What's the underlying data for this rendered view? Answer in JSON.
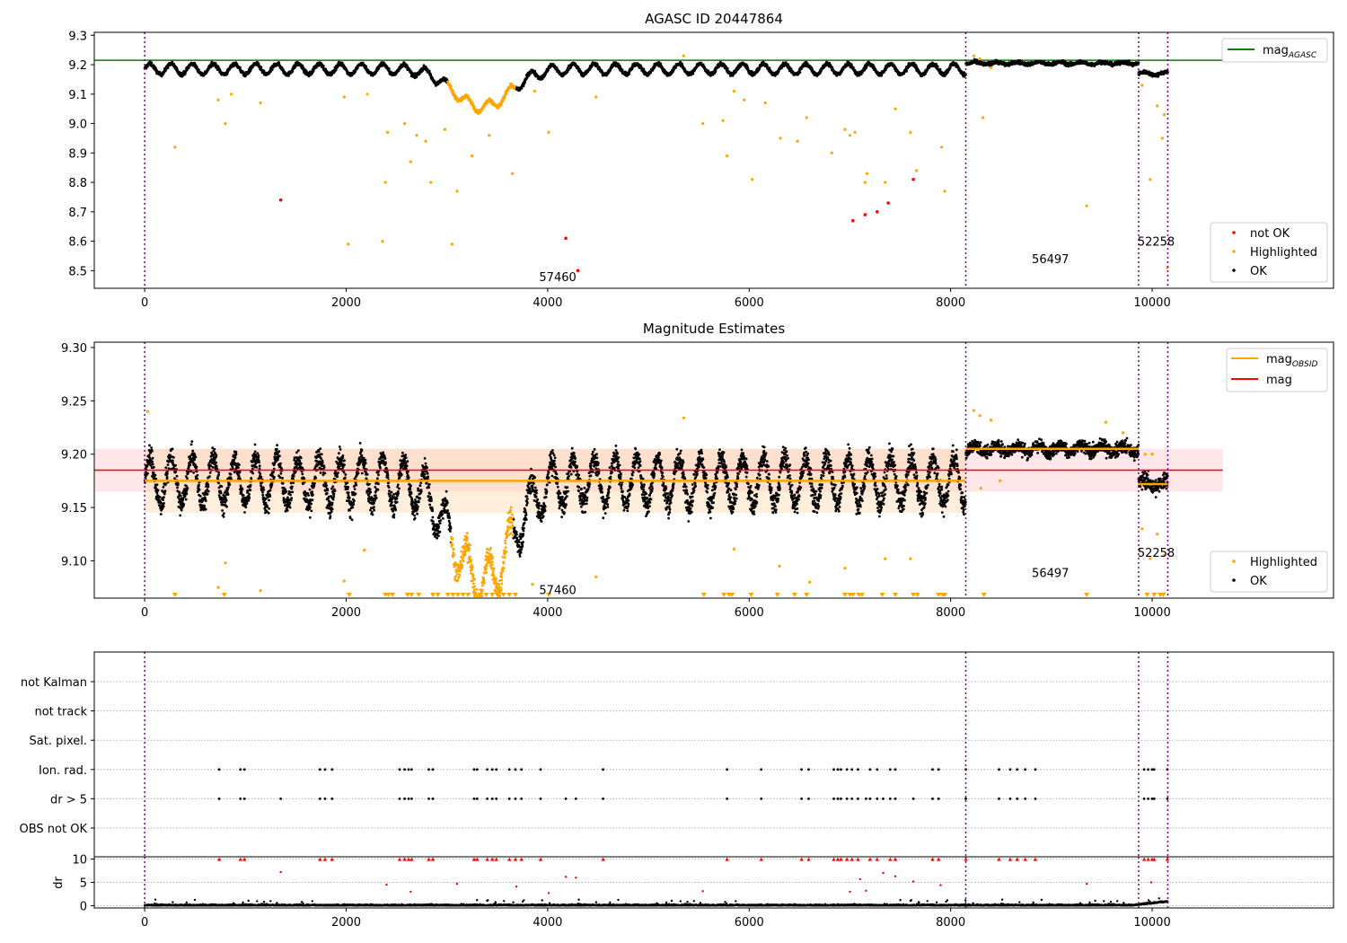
{
  "chart_data": [
    {
      "type": "scatter",
      "title": "AGASC ID 20447864",
      "xlim": [
        -500,
        11800
      ],
      "ylim": [
        8.44,
        9.31
      ],
      "xticks": [
        0,
        2000,
        4000,
        6000,
        8000,
        10000
      ],
      "yticks": [
        8.5,
        8.6,
        8.7,
        8.8,
        8.9,
        9.0,
        9.1,
        9.2,
        9.3
      ],
      "grid": false,
      "obsid_boundaries": [
        0,
        8150,
        9865,
        10155
      ],
      "obsid_labels": [
        {
          "text": "57460",
          "x": 4100,
          "y": 8.48
        },
        {
          "text": "56497",
          "x": 8990,
          "y": 8.54
        },
        {
          "text": "52258",
          "x": 10040,
          "y": 8.6
        }
      ],
      "reference_line": {
        "name": "magAGASC",
        "label_main": "mag",
        "label_sub": "AGASC",
        "y": 9.215,
        "x_end": 10700,
        "color": "#008000"
      },
      "legend_top": {
        "placement": "top-right",
        "entries": [
          {
            "label_main": "mag",
            "label_sub": "AGASC",
            "color": "#008000",
            "kind": "line"
          }
        ]
      },
      "legend_bottom": {
        "placement": "lower-right",
        "entries": [
          {
            "label": "not OK",
            "color": "#ff0000",
            "kind": "dot"
          },
          {
            "label": "Highlighted",
            "color": "#ffa500",
            "kind": "dot"
          },
          {
            "label": "OK",
            "color": "#000000",
            "kind": "dot"
          }
        ]
      },
      "segments": [
        {
          "x": [
            0,
            8150
          ],
          "level": 9.185,
          "wave_amp": 0.018,
          "dip": {
            "center": 3350,
            "width": 400,
            "depth": 0.13
          }
        },
        {
          "x": [
            8150,
            9865
          ],
          "level": 9.205,
          "wave_amp": 0.004
        },
        {
          "x": [
            9865,
            10155
          ],
          "level": 9.17,
          "wave_amp": 0.005
        }
      ],
      "highlighted_outliers": [
        [
          300,
          8.92
        ],
        [
          730,
          9.08
        ],
        [
          800,
          9.0
        ],
        [
          860,
          9.1
        ],
        [
          1150,
          9.07
        ],
        [
          1980,
          9.09
        ],
        [
          2020,
          8.59
        ],
        [
          2210,
          9.1
        ],
        [
          2360,
          8.6
        ],
        [
          2390,
          8.8
        ],
        [
          2410,
          8.97
        ],
        [
          2580,
          9.0
        ],
        [
          2640,
          8.87
        ],
        [
          2700,
          8.96
        ],
        [
          2790,
          8.94
        ],
        [
          2840,
          8.8
        ],
        [
          2980,
          8.98
        ],
        [
          3050,
          8.59
        ],
        [
          3100,
          8.77
        ],
        [
          3250,
          8.89
        ],
        [
          3420,
          8.96
        ],
        [
          3650,
          8.83
        ],
        [
          3870,
          9.11
        ],
        [
          4010,
          8.97
        ],
        [
          4480,
          9.09
        ],
        [
          5350,
          9.23
        ],
        [
          5540,
          9.0
        ],
        [
          5740,
          9.01
        ],
        [
          5780,
          8.89
        ],
        [
          5850,
          9.11
        ],
        [
          5950,
          9.08
        ],
        [
          6030,
          8.81
        ],
        [
          6160,
          9.07
        ],
        [
          6310,
          8.95
        ],
        [
          6480,
          8.94
        ],
        [
          6570,
          9.02
        ],
        [
          6820,
          8.9
        ],
        [
          6950,
          8.98
        ],
        [
          7000,
          8.96
        ],
        [
          7050,
          8.97
        ],
        [
          7150,
          8.8
        ],
        [
          7170,
          8.83
        ],
        [
          7350,
          8.8
        ],
        [
          7450,
          9.05
        ],
        [
          7600,
          8.97
        ],
        [
          7660,
          8.84
        ],
        [
          7910,
          8.92
        ],
        [
          7940,
          8.77
        ],
        [
          8320,
          9.02
        ],
        [
          9350,
          8.72
        ],
        [
          9900,
          9.13
        ],
        [
          9980,
          8.81
        ],
        [
          10050,
          9.06
        ],
        [
          10100,
          8.95
        ],
        [
          10120,
          9.03
        ],
        [
          10150,
          8.51
        ],
        [
          8230,
          9.23
        ],
        [
          8290,
          9.22
        ],
        [
          8400,
          9.19
        ]
      ],
      "not_ok_points": [
        [
          1350,
          8.74
        ],
        [
          4180,
          8.61
        ],
        [
          4300,
          8.5
        ],
        [
          7030,
          8.67
        ],
        [
          7150,
          8.69
        ],
        [
          7270,
          8.7
        ],
        [
          7380,
          8.73
        ],
        [
          7630,
          8.81
        ]
      ]
    },
    {
      "type": "scatter",
      "title": "Magnitude Estimates",
      "xlim": [
        -500,
        11800
      ],
      "ylim": [
        9.065,
        9.305
      ],
      "xticks": [
        0,
        2000,
        4000,
        6000,
        8000,
        10000
      ],
      "yticks": [
        9.1,
        9.15,
        9.2,
        9.25,
        9.3
      ],
      "grid": false,
      "obsid_boundaries": [
        0,
        8150,
        9865,
        10155
      ],
      "obsid_labels": [
        {
          "text": "57460",
          "x": 4100,
          "y": 9.073
        },
        {
          "text": "56497",
          "x": 8990,
          "y": 9.089
        },
        {
          "text": "52258",
          "x": 10040,
          "y": 9.108
        }
      ],
      "mag_line": {
        "name": "mag",
        "y": 9.185,
        "band": [
          9.165,
          9.205
        ],
        "x_end": 10700,
        "color": "#ff0000"
      },
      "obsid_mags": [
        {
          "x": [
            0,
            8150
          ],
          "y": 9.175,
          "band": [
            9.145,
            9.205
          ]
        },
        {
          "x": [
            8150,
            9865
          ],
          "y": 9.205
        },
        {
          "x": [
            9865,
            10155
          ],
          "y": 9.172
        }
      ],
      "legend_top": {
        "placement": "top-right",
        "entries": [
          {
            "label_main": "mag",
            "label_sub": "OBSID",
            "color": "#ffa500",
            "kind": "line"
          },
          {
            "label_main": "mag",
            "label_sub": "",
            "color": "#ff0000",
            "kind": "line"
          }
        ]
      },
      "legend_bottom": {
        "placement": "lower-right",
        "entries": [
          {
            "label": "Highlighted",
            "color": "#ffa500",
            "kind": "dot"
          },
          {
            "label": "OK",
            "color": "#000000",
            "kind": "dot"
          }
        ]
      },
      "highlighted_outliers": [
        [
          30,
          9.24
        ],
        [
          730,
          9.075
        ],
        [
          800,
          9.098
        ],
        [
          1150,
          9.072
        ],
        [
          1980,
          9.081
        ],
        [
          2180,
          9.11
        ],
        [
          3850,
          9.078
        ],
        [
          4480,
          9.085
        ],
        [
          5350,
          9.234
        ],
        [
          5850,
          9.111
        ],
        [
          6300,
          9.095
        ],
        [
          6600,
          9.08
        ],
        [
          6950,
          9.093
        ],
        [
          7350,
          9.102
        ],
        [
          7600,
          9.102
        ],
        [
          8230,
          9.241
        ],
        [
          8290,
          9.236
        ],
        [
          8400,
          9.232
        ],
        [
          8300,
          9.168
        ],
        [
          8490,
          9.175
        ],
        [
          9540,
          9.23
        ],
        [
          9710,
          9.22
        ],
        [
          9900,
          9.13
        ],
        [
          9980,
          9.102
        ],
        [
          10050,
          9.125
        ],
        [
          10120,
          9.105
        ],
        [
          9930,
          9.2
        ],
        [
          10000,
          9.2
        ]
      ],
      "below_range_markers": [
        300,
        790,
        2030,
        2390,
        2420,
        2460,
        2610,
        2650,
        2720,
        2860,
        2910,
        3010,
        3060,
        3110,
        3160,
        3210,
        3280,
        3330,
        3390,
        3450,
        3500,
        3560,
        3620,
        3680,
        4010,
        5550,
        5750,
        5800,
        5830,
        6020,
        6280,
        6450,
        6570,
        6950,
        7000,
        7030,
        7090,
        7120,
        7320,
        7450,
        7630,
        7670,
        7880,
        7920,
        7940,
        8330,
        9350,
        9950,
        10020,
        10080,
        10110
      ]
    },
    {
      "type": "scatter",
      "title": "",
      "xlim": [
        -500,
        11800
      ],
      "xticks": [
        0,
        2000,
        4000,
        6000,
        8000,
        10000
      ],
      "flag_rows": [
        "not Kalman",
        "not track",
        "Sat. pixel.",
        "Ion. rad.",
        "dr > 5",
        "OBS not OK"
      ],
      "obsid_boundaries": [
        0,
        8150,
        9865,
        10155
      ],
      "flag_points": {
        "Ion. rad.": [
          740,
          950,
          990,
          1740,
          1790,
          1860,
          2530,
          2580,
          2620,
          2650,
          2820,
          2860,
          3270,
          3300,
          3400,
          3450,
          3490,
          3620,
          3680,
          3740,
          3930,
          4550,
          5780,
          6120,
          6520,
          6590,
          6840,
          6880,
          6910,
          6970,
          7020,
          7080,
          7200,
          7270,
          7400,
          7450,
          7820,
          7880,
          8150,
          8480,
          8590,
          8660,
          8740,
          8840,
          9920,
          9960,
          10000,
          10020,
          10150
        ],
        "dr > 5": [
          740,
          950,
          990,
          1350,
          1740,
          1790,
          1860,
          2530,
          2580,
          2620,
          2650,
          2820,
          2860,
          3270,
          3300,
          3400,
          3450,
          3490,
          3620,
          3680,
          3740,
          3930,
          4180,
          4280,
          4550,
          5780,
          6120,
          6520,
          6590,
          6840,
          6880,
          6910,
          6970,
          7020,
          7080,
          7160,
          7200,
          7270,
          7330,
          7400,
          7450,
          7630,
          7820,
          7880,
          8150,
          8480,
          8590,
          8660,
          8740,
          8840,
          9920,
          9960,
          10000,
          10020,
          10150
        ]
      }
    },
    {
      "type": "scatter",
      "title": "",
      "ylabel": "dr",
      "xlim": [
        -500,
        11800
      ],
      "ylim": [
        -0.5,
        10.5
      ],
      "xticks": [
        0,
        2000,
        4000,
        6000,
        8000,
        10000
      ],
      "yticks": [
        0,
        5,
        10
      ],
      "obsid_boundaries": [
        0,
        8150,
        9865,
        10155
      ],
      "capped_value": 10,
      "capped_x": [
        740,
        950,
        990,
        1740,
        1790,
        1860,
        2530,
        2580,
        2620,
        2650,
        2820,
        2860,
        3270,
        3300,
        3400,
        3450,
        3490,
        3620,
        3680,
        3740,
        3930,
        4550,
        5780,
        6120,
        6520,
        6590,
        6840,
        6880,
        6910,
        6970,
        7020,
        7080,
        7200,
        7270,
        7400,
        7450,
        7820,
        7880,
        8150,
        8480,
        8590,
        8660,
        8740,
        8840,
        9920,
        9960,
        10000,
        10020,
        10150
      ],
      "mid_red_points": [
        [
          1350,
          7.2
        ],
        [
          2400,
          4.5
        ],
        [
          2640,
          3.0
        ],
        [
          3100,
          4.7
        ],
        [
          3690,
          4.1
        ],
        [
          4010,
          2.7
        ],
        [
          4180,
          6.2
        ],
        [
          4280,
          6.0
        ],
        [
          5540,
          3.1
        ],
        [
          7000,
          3.0
        ],
        [
          7100,
          5.7
        ],
        [
          7160,
          3.2
        ],
        [
          7330,
          7.0
        ],
        [
          7450,
          6.3
        ],
        [
          7630,
          5.2
        ],
        [
          7900,
          4.4
        ],
        [
          9350,
          4.7
        ],
        [
          9990,
          5.0
        ]
      ]
    }
  ]
}
